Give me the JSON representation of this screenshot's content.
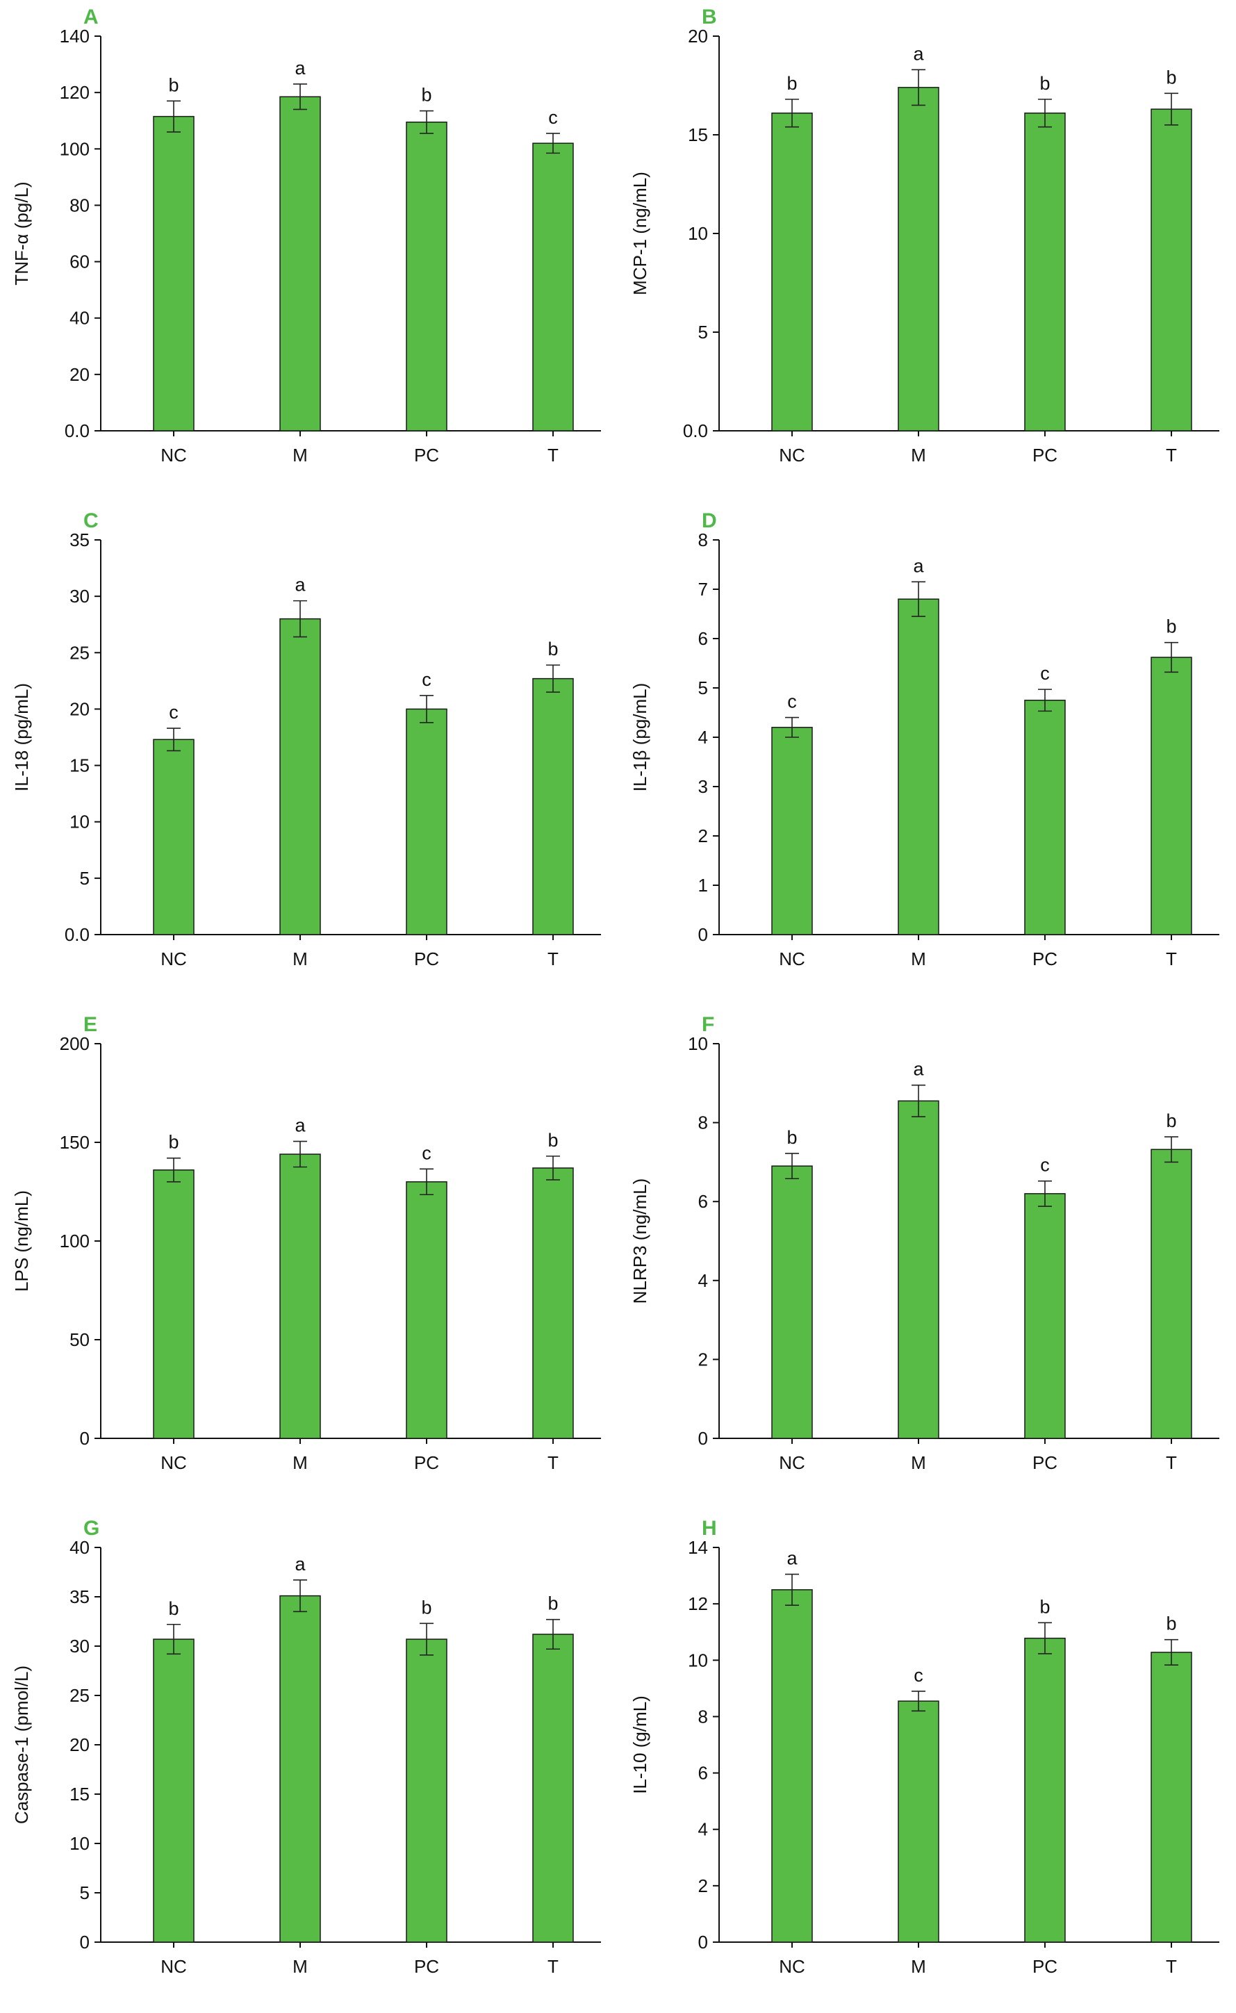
{
  "colors": {
    "bar": "#58bb46",
    "bar_edge": "#1a1a1a",
    "panel_letter": "#4fb848",
    "axis": "#111111"
  },
  "chart_data": [
    {
      "type": "bar",
      "panel": "A",
      "ylabel": "TNF-α (pg/L)",
      "ylim": [
        0,
        140
      ],
      "yticks": [
        "0.0",
        "20",
        "40",
        "60",
        "80",
        "100",
        "120",
        "140"
      ],
      "categories": [
        "NC",
        "M",
        "PC",
        "T"
      ],
      "values": [
        111.5,
        118.5,
        109.5,
        102.0
      ],
      "errors": [
        5.5,
        4.5,
        4.0,
        3.5
      ],
      "significance": [
        "b",
        "a",
        "b",
        "c"
      ]
    },
    {
      "type": "bar",
      "panel": "B",
      "ylabel": "MCP-1 (ng/mL)",
      "ylim": [
        0,
        20
      ],
      "yticks": [
        "0.0",
        "5",
        "10",
        "15",
        "20"
      ],
      "categories": [
        "NC",
        "M",
        "PC",
        "T"
      ],
      "values": [
        16.1,
        17.4,
        16.1,
        16.3
      ],
      "errors": [
        0.7,
        0.9,
        0.7,
        0.8
      ],
      "significance": [
        "b",
        "a",
        "b",
        "b"
      ]
    },
    {
      "type": "bar",
      "panel": "C",
      "ylabel": "IL-18 (pg/mL)",
      "ylim": [
        0,
        35
      ],
      "yticks": [
        "0.0",
        "5",
        "10",
        "15",
        "20",
        "25",
        "30",
        "35"
      ],
      "categories": [
        "NC",
        "M",
        "PC",
        "T"
      ],
      "values": [
        17.3,
        28.0,
        20.0,
        22.7
      ],
      "errors": [
        1.0,
        1.6,
        1.2,
        1.2
      ],
      "significance": [
        "c",
        "a",
        "c",
        "b"
      ]
    },
    {
      "type": "bar",
      "panel": "D",
      "ylabel": "IL-1β (pg/mL)",
      "ylim": [
        0,
        8
      ],
      "yticks": [
        "0",
        "1",
        "2",
        "3",
        "4",
        "5",
        "6",
        "7",
        "8"
      ],
      "categories": [
        "NC",
        "M",
        "PC",
        "T"
      ],
      "values": [
        4.2,
        6.8,
        4.75,
        5.62
      ],
      "errors": [
        0.2,
        0.35,
        0.22,
        0.3
      ],
      "significance": [
        "c",
        "a",
        "c",
        "b"
      ]
    },
    {
      "type": "bar",
      "panel": "E",
      "ylabel": "LPS (ng/mL)",
      "ylim": [
        0,
        200
      ],
      "yticks": [
        "0",
        "50",
        "100",
        "150",
        "200"
      ],
      "categories": [
        "NC",
        "M",
        "PC",
        "T"
      ],
      "values": [
        136,
        144,
        130,
        137
      ],
      "errors": [
        6,
        6.5,
        6.5,
        6
      ],
      "significance": [
        "b",
        "a",
        "c",
        "b"
      ]
    },
    {
      "type": "bar",
      "panel": "F",
      "ylabel": "NLRP3 (ng/mL)",
      "ylim": [
        0,
        10
      ],
      "yticks": [
        "0",
        "2",
        "4",
        "6",
        "8",
        "10"
      ],
      "categories": [
        "NC",
        "M",
        "PC",
        "T"
      ],
      "values": [
        6.9,
        8.55,
        6.2,
        7.32
      ],
      "errors": [
        0.32,
        0.4,
        0.32,
        0.32
      ],
      "significance": [
        "b",
        "a",
        "c",
        "b"
      ]
    },
    {
      "type": "bar",
      "panel": "G",
      "ylabel": "Caspase-1 (pmol/L)",
      "ylim": [
        0,
        40
      ],
      "yticks": [
        "0",
        "5",
        "10",
        "15",
        "20",
        "25",
        "30",
        "35",
        "40"
      ],
      "categories": [
        "NC",
        "M",
        "PC",
        "T"
      ],
      "values": [
        30.7,
        35.1,
        30.7,
        31.2
      ],
      "errors": [
        1.5,
        1.6,
        1.6,
        1.5
      ],
      "significance": [
        "b",
        "a",
        "b",
        "b"
      ]
    },
    {
      "type": "bar",
      "panel": "H",
      "ylabel": "IL-10 (g/mL)",
      "ylim": [
        0,
        14
      ],
      "yticks": [
        "0",
        "2",
        "4",
        "6",
        "8",
        "10",
        "12",
        "14"
      ],
      "categories": [
        "NC",
        "M",
        "PC",
        "T"
      ],
      "values": [
        12.5,
        8.55,
        10.78,
        10.28
      ],
      "errors": [
        0.55,
        0.35,
        0.55,
        0.45
      ],
      "significance": [
        "a",
        "c",
        "b",
        "b"
      ]
    }
  ]
}
